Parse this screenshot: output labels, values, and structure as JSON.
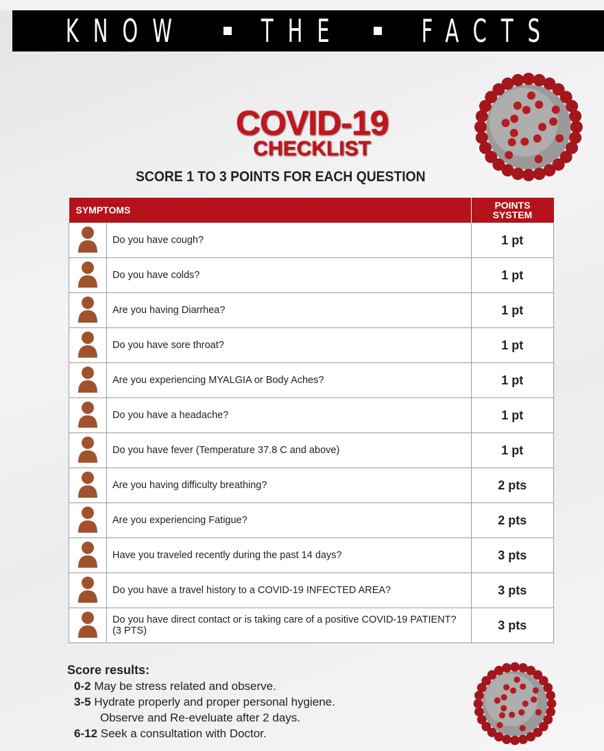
{
  "banner": {
    "words": [
      "KNOW",
      "THE",
      "FACTS"
    ]
  },
  "title": "COVID-19",
  "subtitle": "CHECKLIST",
  "instruction": "SCORE 1 TO 3 POINTS FOR EACH QUESTION",
  "table": {
    "headers": {
      "symptoms": "SYMPTOMS",
      "points": "POINTS SYSTEM"
    },
    "rows": [
      {
        "icon": "cough-icon",
        "question": "Do you have cough?",
        "points": "1 pt"
      },
      {
        "icon": "colds-icon",
        "question": "Do you have colds?",
        "points": "1 pt"
      },
      {
        "icon": "diarrhea-icon",
        "question": "Are you having Diarrhea?",
        "points": "1 pt"
      },
      {
        "icon": "sore-throat-icon",
        "question": "Do you have sore throat?",
        "points": "1 pt"
      },
      {
        "icon": "body-aches-icon",
        "question": "Are you experiencing MYALGIA or Body Aches?",
        "points": "1 pt"
      },
      {
        "icon": "headache-icon",
        "question": "Do you have a headache?",
        "points": "1 pt"
      },
      {
        "icon": "thermometer-icon",
        "question": "Do you have fever (Temperature 37.8 C and above)",
        "points": "1 pt"
      },
      {
        "icon": "breathing-icon",
        "question": "Are you having difficulty breathing?",
        "points": "2 pts"
      },
      {
        "icon": "fatigue-icon",
        "question": "Are you experiencing Fatigue?",
        "points": "2 pts"
      },
      {
        "icon": "airplane-icon",
        "question": "Have you traveled recently during the past 14 days?",
        "points": "3 pts"
      },
      {
        "icon": "map-search-icon",
        "question": "Do you have a travel history to a COVID-19 INFECTED AREA?",
        "points": "3 pts"
      },
      {
        "icon": "patient-mask-icon",
        "question": "Do you have direct contact or is taking care of a positive COVID-19 PATIENT? (3 PTS)",
        "points": "3 pts"
      }
    ]
  },
  "results": {
    "heading": "Score results:",
    "items": [
      {
        "range": "0-2",
        "text": "May be stress related and observe."
      },
      {
        "range": "3-5",
        "text": "Hydrate properly and proper personal hygiene.",
        "continuation": "Observe and Re-eveluate after 2 days."
      },
      {
        "range": "6-12",
        "text": "Seek a consultation with Doctor."
      }
    ]
  },
  "colors": {
    "accent": "#c1161c",
    "header_bg": "#b5121b",
    "banner_bg": "#000000",
    "icon": "#a0522d"
  }
}
